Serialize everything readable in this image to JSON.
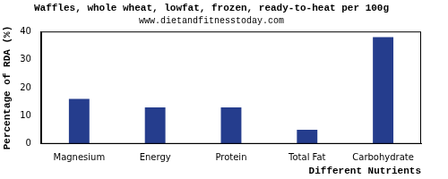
{
  "chart_data": {
    "type": "bar",
    "title": "Waffles, whole wheat, lowfat, frozen, ready-to-heat per 100g",
    "subtitle": "www.dietandfitnesstoday.com",
    "x_label": "Different Nutrients",
    "y_label": "Percentage of RDA (%)",
    "categories": [
      "Magnesium",
      "Energy",
      "Protein",
      "Total Fat",
      "Carbohydrate"
    ],
    "values": [
      16,
      13,
      13,
      5,
      38
    ],
    "color": "#253d8d",
    "ylim": [
      0,
      40
    ],
    "yticks": [
      0,
      10,
      20,
      30,
      40
    ],
    "grid": false
  }
}
